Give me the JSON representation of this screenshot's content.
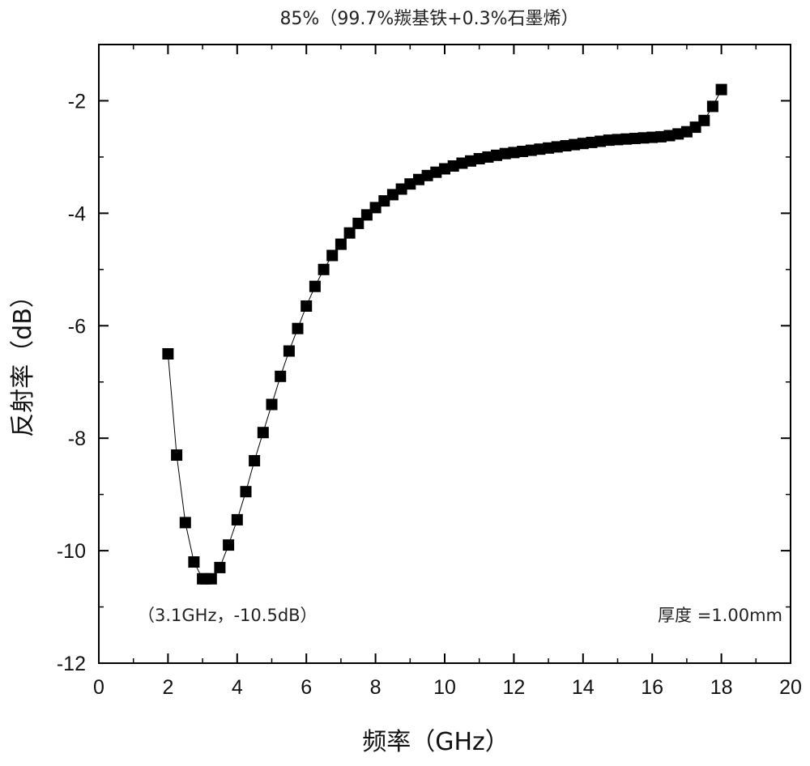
{
  "chart_data": {
    "type": "scatter",
    "title": "85%（99.7%羰基铁+0.3%石墨烯）",
    "xlabel": "频率（GHz）",
    "ylabel": "反射率（dB）",
    "xlim": [
      0,
      20
    ],
    "ylim": [
      -12,
      -1
    ],
    "xticks": [
      "0",
      "2",
      "4",
      "6",
      "8",
      "10",
      "12",
      "14",
      "16",
      "18",
      "20"
    ],
    "yticks": [
      "-2",
      "-4",
      "-6",
      "-8",
      "-10",
      "-12"
    ],
    "grid": false,
    "marker": "square",
    "color": "#000000",
    "x": [
      2.0,
      2.25,
      2.5,
      2.75,
      3.0,
      3.1,
      3.25,
      3.5,
      3.75,
      4.0,
      4.25,
      4.5,
      4.75,
      5.0,
      5.25,
      5.5,
      5.75,
      6.0,
      6.25,
      6.5,
      6.75,
      7.0,
      7.25,
      7.5,
      7.75,
      8.0,
      8.25,
      8.5,
      8.75,
      9.0,
      9.25,
      9.5,
      9.75,
      10.0,
      10.25,
      10.5,
      10.75,
      11.0,
      11.25,
      11.5,
      11.75,
      12.0,
      12.25,
      12.5,
      12.75,
      13.0,
      13.25,
      13.5,
      13.75,
      14.0,
      14.25,
      14.5,
      14.75,
      15.0,
      15.25,
      15.5,
      15.75,
      16.0,
      16.25,
      16.5,
      16.75,
      17.0,
      17.25,
      17.5,
      17.75,
      18.0
    ],
    "y": [
      -6.5,
      -8.3,
      -9.5,
      -10.2,
      -10.5,
      -10.5,
      -10.5,
      -10.3,
      -9.9,
      -9.45,
      -8.95,
      -8.4,
      -7.9,
      -7.4,
      -6.9,
      -6.45,
      -6.05,
      -5.65,
      -5.3,
      -5.0,
      -4.75,
      -4.55,
      -4.35,
      -4.18,
      -4.03,
      -3.9,
      -3.78,
      -3.67,
      -3.57,
      -3.48,
      -3.4,
      -3.33,
      -3.27,
      -3.21,
      -3.16,
      -3.11,
      -3.07,
      -3.03,
      -3.0,
      -2.97,
      -2.94,
      -2.92,
      -2.9,
      -2.88,
      -2.86,
      -2.84,
      -2.82,
      -2.8,
      -2.78,
      -2.76,
      -2.74,
      -2.72,
      -2.7,
      -2.69,
      -2.68,
      -2.67,
      -2.66,
      -2.65,
      -2.64,
      -2.62,
      -2.59,
      -2.55,
      -2.47,
      -2.35,
      -2.1,
      -1.8
    ],
    "annotations": [
      "（3.1GHz，-10.5dB）",
      "厚度 =1.00mm"
    ]
  }
}
